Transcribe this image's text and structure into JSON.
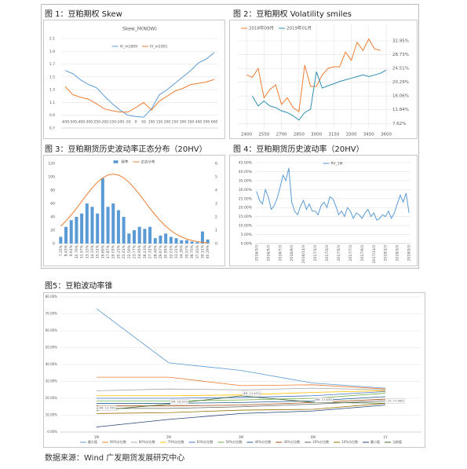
{
  "source": "数据来源：Wind 广发期货发展研究中心",
  "chart_data": [
    {
      "type": "line",
      "caption": "图 1：豆粕期权 Skew",
      "title": "Skew_M(NOW)",
      "categories": [
        "-600",
        "-500",
        "-400",
        "-300",
        "-250",
        "-200",
        "-150",
        "-100",
        "-50",
        "0",
        "50",
        "100",
        "150",
        "200",
        "250",
        "300",
        "350",
        "400",
        "500",
        "600"
      ],
      "series": [
        {
          "name": "IV_m1809",
          "color": "#5b9bd5",
          "values": [
            1.6,
            1.55,
            1.45,
            1.38,
            1.33,
            1.2,
            1.08,
            0.98,
            0.9,
            0.88,
            0.87,
            1.0,
            1.22,
            1.3,
            1.4,
            1.5,
            1.6,
            1.72,
            1.78,
            1.88
          ]
        },
        {
          "name": "IV_m1901",
          "color": "#ed7d31",
          "values": [
            1.35,
            1.22,
            1.18,
            1.15,
            1.08,
            1.0,
            0.97,
            0.95,
            0.95,
            1.02,
            1.1,
            0.98,
            1.12,
            1.2,
            1.28,
            1.32,
            1.38,
            1.4,
            1.42,
            1.46
          ]
        }
      ],
      "ylim": [
        0.7,
        2.1
      ],
      "yticks": [
        0.7,
        0.9,
        1.1,
        1.3,
        1.5,
        1.7,
        1.9,
        2.1
      ],
      "grid": true,
      "legend": "top"
    },
    {
      "type": "line",
      "caption": "图 2：豆粕期权 Volatility smiles",
      "x": [
        2400,
        2450,
        2500,
        2550,
        2600,
        2650,
        2700,
        2750,
        2800,
        2850,
        2900,
        2950,
        3000,
        3050,
        3100,
        3150,
        3200,
        3250,
        3300,
        3350,
        3400,
        3450,
        3500,
        3550,
        3600
      ],
      "series": [
        {
          "name": "2018年09月",
          "color": "#ed7d31",
          "values": [
            22.5,
            21.8,
            24.5,
            15.5,
            18,
            19.5,
            13.5,
            15.5,
            12.5,
            11.3,
            25.5,
            19,
            19,
            22.5,
            24.5,
            25,
            25,
            29.5,
            27,
            32.5,
            30,
            33.5,
            30.5,
            30,
            null
          ]
        },
        {
          "name": "2019年01月",
          "color": "#2e8fb0",
          "values": [
            null,
            16,
            13,
            14.5,
            13,
            12.5,
            11.5,
            11,
            10,
            8.7,
            11,
            12,
            23.5,
            18.5,
            19.2,
            19.8,
            20.5,
            21,
            21.5,
            22,
            22.5,
            22,
            22.5,
            23,
            24
          ]
        }
      ],
      "xlim": [
        2325,
        3640
      ],
      "xticks": [
        2400,
        2550,
        2700,
        2850,
        3000,
        3150,
        3300,
        3450,
        3600
      ],
      "ylim": [
        6,
        38
      ],
      "yticks": [
        {
          "value": 7.62,
          "label": "7.62%"
        },
        {
          "value": 11.84,
          "label": "11.84%"
        },
        {
          "value": 16.06,
          "label": "16.06%"
        },
        {
          "value": 20.29,
          "label": "20.29%"
        },
        {
          "value": 24.51,
          "label": "24.51%"
        },
        {
          "value": 28.73,
          "label": "28.73%"
        },
        {
          "value": 32.95,
          "label": "32.95%"
        }
      ],
      "y_axis_position": "right",
      "grid": true,
      "legend": "top-left"
    },
    {
      "type": "bar",
      "caption": "图 3：豆粕期货历史波动率正态分布（20HV）",
      "categories": [
        "7.25%",
        "8.43%",
        "9.61%",
        "10.79%",
        "11.97%",
        "13.15%",
        "14.33%",
        "15.51%",
        "16.69%",
        "17.87%",
        "19.05%",
        "20.23%",
        "21.41%",
        "22.59%",
        "23.77%",
        "24.95%",
        "26.13%",
        "27.31%",
        "28.49%",
        "29.67%",
        "30.85%",
        "32.03%",
        "33.21%",
        "34.39%",
        "35.57%",
        "36.75%",
        "37.93%",
        "39.11%",
        "40.29%"
      ],
      "series": [
        {
          "name": "频率",
          "color": "#5b9bd5",
          "values": [
            10,
            25,
            35,
            40,
            45,
            60,
            55,
            45,
            98,
            55,
            60,
            50,
            40,
            15,
            20,
            25,
            22,
            25,
            8,
            12,
            15,
            10,
            8,
            5,
            5,
            3,
            2,
            18,
            6
          ]
        },
        {
          "name": "正态分布",
          "color": "#ed7d31",
          "type": "line",
          "axis": "y2",
          "values": [
            1.3,
            1.69,
            2.14,
            2.63,
            3.16,
            3.68,
            4.16,
            4.59,
            4.92,
            5.13,
            5.2,
            5.13,
            4.92,
            4.59,
            4.16,
            3.68,
            3.16,
            2.63,
            2.14,
            1.69,
            1.3,
            0.97,
            0.7,
            0.5,
            0.34,
            0.23,
            0.15,
            0.09,
            0.06
          ]
        }
      ],
      "ylim": [
        0,
        120
      ],
      "yticks": [
        0,
        20,
        40,
        60,
        80,
        100,
        120
      ],
      "y2lim": [
        0,
        6
      ],
      "y2ticks": [
        0,
        1,
        2,
        3,
        4,
        5,
        6
      ],
      "grid": false,
      "legend": "top"
    },
    {
      "type": "line",
      "caption": "图 4：豆粕期货历史波动率（20HV）",
      "categories": [
        "2016/3/3",
        null,
        null,
        null,
        "2016/5/3",
        null,
        null,
        null,
        "2016/7/3",
        null,
        null,
        null,
        "2016/9/3",
        null,
        null,
        null,
        "2016/11/3",
        null,
        null,
        null,
        "2017/1/3",
        null,
        null,
        null,
        "2017/3/3",
        null,
        null,
        null,
        "2017/5/3",
        null,
        null,
        null,
        "2017/7/3",
        null,
        null,
        null,
        "2017/9/3",
        null,
        null,
        null,
        "2017/11/3",
        null,
        null,
        null,
        "2018/1/3",
        null,
        null,
        null,
        "2018/3/3",
        null,
        null,
        null,
        "2018/5/3"
      ],
      "series": [
        {
          "name": "RV_1M",
          "color": "#5b9bd5",
          "values": [
            29,
            24,
            22,
            30,
            26,
            19,
            21,
            25,
            31,
            38,
            35,
            42,
            23,
            18,
            16,
            21,
            24,
            19,
            22,
            18,
            18,
            16,
            21,
            23,
            20,
            26,
            25,
            21,
            16,
            18,
            15,
            20,
            18,
            14,
            17,
            16,
            14,
            17,
            19,
            15,
            17,
            13,
            14,
            16,
            15,
            18,
            14,
            17,
            22,
            27,
            23,
            28,
            17
          ]
        }
      ],
      "ylim": [
        0,
        45
      ],
      "yticks": [
        {
          "value": 0,
          "label": "0.00%"
        },
        {
          "value": 5,
          "label": "5.00%"
        },
        {
          "value": 10,
          "label": "10.00%"
        },
        {
          "value": 15,
          "label": "15.00%"
        },
        {
          "value": 20,
          "label": "20.00%"
        },
        {
          "value": 25,
          "label": "25.00%"
        },
        {
          "value": 30,
          "label": "30.00%"
        },
        {
          "value": 35,
          "label": "35.00%"
        },
        {
          "value": 40,
          "label": "40.00%"
        },
        {
          "value": 45,
          "label": "45.00%"
        }
      ],
      "grid": true,
      "legend": "top"
    },
    {
      "type": "line",
      "caption": "图5：豆粕波动率锥",
      "categories": [
        "1M",
        "2M",
        "3M",
        "6M",
        "1Y"
      ],
      "series": [
        {
          "name": "最大值",
          "color": "#5b9bd5",
          "values": [
            73,
            41,
            36.5,
            29,
            26
          ]
        },
        {
          "name": "90%分位数",
          "color": "#ed7d31",
          "values": [
            32.5,
            32.5,
            27.5,
            28,
            25.5
          ]
        },
        {
          "name": "80%分位数",
          "color": "#a5a5a5",
          "values": [
            24.5,
            25.5,
            25,
            26,
            25
          ]
        },
        {
          "name": "70%分位数",
          "color": "#ffc000",
          "values": [
            21.5,
            21.5,
            22,
            23.5,
            24.5
          ]
        },
        {
          "name": "60%分位数",
          "color": "#4472c4",
          "values": [
            20,
            20,
            20.5,
            21.5,
            24
          ]
        },
        {
          "name": "50%分位数",
          "color": "#70ad47",
          "values": [
            18.5,
            18.5,
            19,
            20,
            23
          ]
        },
        {
          "name": "40%分位数",
          "color": "#255e91",
          "values": [
            17,
            17,
            17.5,
            18.5,
            21
          ]
        },
        {
          "name": "30%分位数",
          "color": "#9e480e",
          "values": [
            15.5,
            15.5,
            16,
            17.5,
            19.5
          ]
        },
        {
          "name": "20%分位数",
          "color": "#636363",
          "values": [
            14,
            14,
            15,
            16.5,
            18.5
          ]
        },
        {
          "name": "10%分位数",
          "color": "#997300",
          "values": [
            11,
            11.5,
            13,
            13.5,
            17
          ]
        },
        {
          "name": "最小值",
          "color": "#264478",
          "values": [
            3,
            7.5,
            11,
            12.5,
            16
          ]
        },
        {
          "name": "当前值",
          "color": "#43682b",
          "values": [
            12.78,
            16.52,
            21.45,
            17.63,
            17.08
          ],
          "value_labels": [
            "1M, 12.78%",
            "2M, 16.52%",
            "3M, 21.45%",
            "6M, 17.63%",
            "1Y, 17.08%"
          ]
        }
      ],
      "ylim": [
        0,
        80
      ],
      "yticks": [
        {
          "value": 0,
          "label": "0.00%"
        },
        {
          "value": 10,
          "label": "10.00%"
        },
        {
          "value": 20,
          "label": "20.00%"
        },
        {
          "value": 30,
          "label": "30.00%"
        },
        {
          "value": 40,
          "label": "40.00%"
        },
        {
          "value": 50,
          "label": "50.00%"
        },
        {
          "value": 60,
          "label": "60.00%"
        },
        {
          "value": 70,
          "label": "70.00%"
        },
        {
          "value": 80,
          "label": "80.00%"
        }
      ],
      "grid": true,
      "legend": "bottom"
    }
  ]
}
